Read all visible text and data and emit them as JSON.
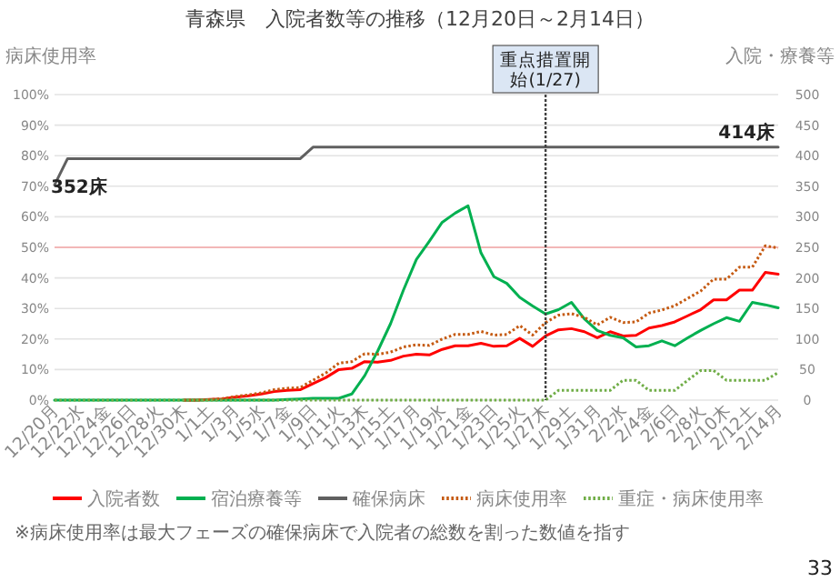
{
  "chart_data": {
    "type": "line",
    "title": "青森県　入院者数等の推移（12月20日～2月14日）",
    "ylabel": "病床使用率",
    "y2label": "入院・療養等",
    "categories": [
      "12/20月",
      null,
      "12/22水",
      null,
      "12/24金",
      null,
      "12/26日",
      null,
      "12/28火",
      null,
      "12/30木",
      null,
      "1/1土",
      null,
      "1/3月",
      null,
      "1/5水",
      null,
      "1/7金",
      null,
      "1/9日",
      null,
      "1/11火",
      null,
      "1/13木",
      null,
      "1/15土",
      null,
      "1/17月",
      null,
      "1/19水",
      null,
      "1/21金",
      null,
      "1/23日",
      null,
      "1/25火",
      null,
      "1/27木",
      null,
      "1/29土",
      null,
      "1/31月",
      null,
      "2/2水",
      null,
      "2/4金",
      null,
      "2/6日",
      null,
      "2/8火",
      null,
      "2/10木",
      null,
      "2/12土",
      null,
      "2/14月"
    ],
    "series": [
      {
        "name": "入院者数",
        "color": "#ff0000",
        "axis": "y2",
        "line_style": "solid",
        "values": [
          null,
          null,
          null,
          null,
          null,
          null,
          null,
          null,
          null,
          null,
          0,
          0,
          1,
          2,
          5,
          7,
          10,
          14,
          16,
          17,
          27,
          37,
          50,
          52,
          63,
          62,
          65,
          72,
          75,
          74,
          83,
          89,
          89,
          93,
          88,
          89,
          101,
          88,
          105,
          115,
          117,
          112,
          102,
          112,
          105,
          106,
          118,
          122,
          128,
          138,
          148,
          164,
          164,
          180,
          180,
          209,
          206
        ]
      },
      {
        "name": "宿泊療養等",
        "color": "#00b050",
        "axis": "y2",
        "line_style": "solid",
        "values": [
          0,
          0,
          0,
          0,
          0,
          0,
          0,
          0,
          0,
          0,
          0,
          0,
          0,
          0,
          0,
          0,
          0,
          0,
          1,
          2,
          3,
          3,
          3,
          10,
          40,
          80,
          125,
          180,
          230,
          260,
          291,
          306,
          318,
          241,
          202,
          191,
          168,
          154,
          141,
          148,
          160,
          133,
          114,
          106,
          102,
          87,
          89,
          97,
          89,
          102,
          114,
          125,
          135,
          129,
          160,
          156,
          151
        ]
      },
      {
        "name": "確保病床",
        "color": "#606060",
        "axis": "y2",
        "line_style": "solid",
        "values": [
          352,
          395,
          395,
          395,
          395,
          395,
          395,
          395,
          395,
          395,
          395,
          395,
          395,
          395,
          395,
          395,
          395,
          395,
          395,
          395,
          414,
          414,
          414,
          414,
          414,
          414,
          414,
          414,
          414,
          414,
          414,
          414,
          414,
          414,
          414,
          414,
          414,
          414,
          414,
          414,
          414,
          414,
          414,
          414,
          414,
          414,
          414,
          414,
          414,
          414,
          414,
          414,
          414,
          414,
          414,
          414,
          414
        ]
      },
      {
        "name": "病床使用率",
        "color": "#c55a11",
        "axis": "y",
        "line_style": "dotted",
        "values": [
          null,
          null,
          null,
          null,
          null,
          null,
          null,
          null,
          null,
          null,
          0,
          0,
          0.2,
          0.5,
          1.2,
          1.7,
          2.4,
          3.4,
          3.9,
          4.1,
          6.5,
          8.9,
          12.1,
          12.6,
          15.2,
          15.0,
          15.7,
          17.4,
          18.1,
          17.9,
          20.0,
          21.5,
          21.5,
          22.5,
          21.3,
          21.5,
          24.4,
          21.3,
          25.4,
          27.8,
          28.3,
          27.1,
          24.6,
          27.1,
          25.4,
          25.6,
          28.5,
          29.5,
          30.9,
          33.3,
          35.7,
          39.6,
          39.6,
          43.5,
          43.5,
          50.5,
          49.8
        ]
      },
      {
        "name": "重症・病床使用率",
        "color": "#70ad47",
        "axis": "y",
        "line_style": "dotted",
        "values": [
          0,
          0,
          0,
          0,
          0,
          0,
          0,
          0,
          0,
          0,
          0,
          0,
          0,
          0,
          0,
          0,
          0,
          0,
          0,
          0,
          0,
          0,
          0,
          0,
          0,
          0,
          0,
          0,
          0,
          0,
          0,
          0,
          0,
          0,
          0,
          0,
          0,
          0,
          0,
          3.2,
          3.2,
          3.2,
          3.2,
          3.2,
          6.5,
          6.5,
          3.2,
          3.2,
          3.2,
          6.5,
          9.7,
          9.7,
          6.5,
          6.5,
          6.5,
          6.5,
          9.0
        ]
      }
    ],
    "ylim": [
      0,
      100
    ],
    "yticks": [
      {
        "value": 0,
        "label": "0%"
      },
      {
        "value": 10,
        "label": "10%"
      },
      {
        "value": 20,
        "label": "20%"
      },
      {
        "value": 30,
        "label": "30%"
      },
      {
        "value": 40,
        "label": "40%"
      },
      {
        "value": 50,
        "label": "50%"
      },
      {
        "value": 60,
        "label": "60%"
      },
      {
        "value": 70,
        "label": "70%"
      },
      {
        "value": 80,
        "label": "80%"
      },
      {
        "value": 90,
        "label": "90%"
      },
      {
        "value": 100,
        "label": "100%"
      }
    ],
    "y2lim": [
      0,
      500
    ],
    "y2ticks": [
      0,
      50,
      100,
      150,
      200,
      250,
      300,
      350,
      400,
      450,
      500
    ],
    "ref_lines": [
      {
        "axis": "y",
        "value": 50,
        "color": "#f4a6a6",
        "line_style": "solid"
      },
      {
        "axis": "x",
        "value": "1/27木",
        "label": "重点措置開始(1/27)",
        "color": "#404040",
        "line_style": "dashed"
      }
    ],
    "annotations": [
      "352床",
      "414床",
      "※病床使用率は最大フェーズの確保病床で入院者の総数を割った数値を指す",
      "33"
    ],
    "grid": "y",
    "legend": "bottom",
    "marker": "none"
  }
}
